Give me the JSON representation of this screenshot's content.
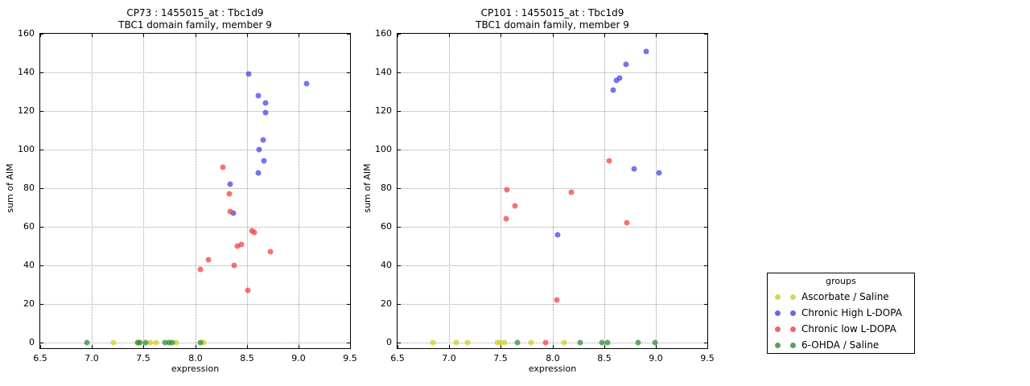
{
  "figure": {
    "background": "#ffffff"
  },
  "legend": {
    "title": "groups",
    "position": "right-outside",
    "entries": [
      {
        "label": "Ascorbate / Saline",
        "color": "#cdcd26"
      },
      {
        "label": "Chronic High L-DOPA",
        "color": "#4040e8"
      },
      {
        "label": "Chronic low L-DOPA",
        "color": "#f23c3c"
      },
      {
        "label": "6-OHDA / Saline",
        "color": "#2e8b2e"
      }
    ]
  },
  "chart_data": [
    {
      "type": "scatter",
      "title_line1": "CP73 : 1455015_at : Tbc1d9",
      "title_line2": "TBC1 domain family, member 9",
      "xlabel": "expression",
      "ylabel": "sum of AIM",
      "xlim": [
        6.5,
        9.5
      ],
      "ylim": [
        0,
        160
      ],
      "grid": true,
      "xticks": [
        6.5,
        7.0,
        7.5,
        8.0,
        8.5,
        9.0,
        9.5
      ],
      "xtick_labels": [
        "6.5",
        "7.0",
        "7.5",
        "8.0",
        "8.5",
        "9.0",
        "9.5"
      ],
      "yticks": [
        0,
        20,
        40,
        60,
        80,
        100,
        120,
        140,
        160
      ],
      "ytick_labels": [
        "0",
        "20",
        "40",
        "60",
        "80",
        "100",
        "120",
        "140",
        "160"
      ],
      "series": [
        {
          "name": "Ascorbate / Saline",
          "color": "#cdcd26",
          "points": [
            [
              7.21,
              0
            ],
            [
              7.45,
              0
            ],
            [
              7.57,
              0
            ],
            [
              7.62,
              0
            ],
            [
              7.82,
              0
            ],
            [
              8.08,
              0
            ]
          ]
        },
        {
          "name": "Chronic High L-DOPA",
          "color": "#4040e8",
          "points": [
            [
              8.52,
              139
            ],
            [
              9.08,
              134
            ],
            [
              8.61,
              128
            ],
            [
              8.68,
              124
            ],
            [
              8.68,
              119
            ],
            [
              8.66,
              105
            ],
            [
              8.62,
              100
            ],
            [
              8.67,
              94
            ],
            [
              8.61,
              88
            ],
            [
              8.34,
              82
            ],
            [
              8.37,
              67
            ]
          ]
        },
        {
          "name": "Chronic low L-DOPA",
          "color": "#f23c3c",
          "points": [
            [
              8.27,
              91
            ],
            [
              8.33,
              77
            ],
            [
              8.34,
              68
            ],
            [
              8.55,
              58
            ],
            [
              8.57,
              57
            ],
            [
              8.45,
              51
            ],
            [
              8.41,
              50
            ],
            [
              8.73,
              47
            ],
            [
              8.13,
              43
            ],
            [
              8.38,
              40
            ],
            [
              8.05,
              38
            ],
            [
              8.51,
              27
            ]
          ]
        },
        {
          "name": "6-OHDA / Saline",
          "color": "#2e8b2e",
          "points": [
            [
              6.95,
              0
            ],
            [
              7.44,
              0
            ],
            [
              7.47,
              0
            ],
            [
              7.52,
              0
            ],
            [
              7.71,
              0
            ],
            [
              7.75,
              0
            ],
            [
              7.78,
              0
            ],
            [
              8.05,
              0
            ]
          ]
        }
      ]
    },
    {
      "type": "scatter",
      "title_line1": "CP101 : 1455015_at : Tbc1d9",
      "title_line2": "TBC1 domain family, member 9",
      "xlabel": "expression",
      "ylabel": "sum of AIM",
      "xlim": [
        6.5,
        9.5
      ],
      "ylim": [
        0,
        160
      ],
      "grid": true,
      "xticks": [
        6.5,
        7.0,
        7.5,
        8.0,
        8.5,
        9.0,
        9.5
      ],
      "xtick_labels": [
        "6.5",
        "7.0",
        "7.5",
        "8.0",
        "8.5",
        "9.0",
        "9.5"
      ],
      "yticks": [
        0,
        20,
        40,
        60,
        80,
        100,
        120,
        140,
        160
      ],
      "ytick_labels": [
        "0",
        "20",
        "40",
        "60",
        "80",
        "100",
        "120",
        "140",
        "160"
      ],
      "series": [
        {
          "name": "Ascorbate / Saline",
          "color": "#cdcd26",
          "points": [
            [
              6.84,
              0
            ],
            [
              7.07,
              0
            ],
            [
              7.18,
              0
            ],
            [
              7.47,
              0
            ],
            [
              7.5,
              0
            ],
            [
              7.54,
              0
            ],
            [
              7.79,
              0
            ],
            [
              8.11,
              0
            ]
          ]
        },
        {
          "name": "Chronic High L-DOPA",
          "color": "#4040e8",
          "points": [
            [
              8.91,
              151
            ],
            [
              8.71,
              144
            ],
            [
              8.65,
              137
            ],
            [
              8.62,
              136
            ],
            [
              8.59,
              131
            ],
            [
              8.79,
              90
            ],
            [
              9.03,
              88
            ],
            [
              8.05,
              56
            ]
          ]
        },
        {
          "name": "Chronic low L-DOPA",
          "color": "#f23c3c",
          "points": [
            [
              8.55,
              94
            ],
            [
              7.56,
              79
            ],
            [
              8.18,
              78
            ],
            [
              7.64,
              71
            ],
            [
              7.55,
              64
            ],
            [
              8.72,
              62
            ],
            [
              8.04,
              22
            ],
            [
              7.93,
              0
            ]
          ]
        },
        {
          "name": "6-OHDA / Saline",
          "color": "#2e8b2e",
          "points": [
            [
              7.66,
              0
            ],
            [
              8.27,
              0
            ],
            [
              8.48,
              0
            ],
            [
              8.53,
              0
            ],
            [
              8.83,
              0
            ],
            [
              8.99,
              0
            ]
          ]
        }
      ]
    }
  ]
}
